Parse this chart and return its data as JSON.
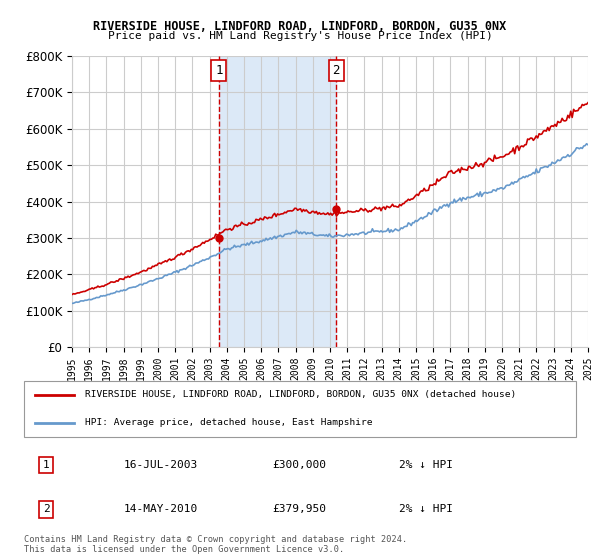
{
  "title1": "RIVERSIDE HOUSE, LINDFORD ROAD, LINDFORD, BORDON, GU35 0NX",
  "title2": "Price paid vs. HM Land Registry's House Price Index (HPI)",
  "legend_line1": "RIVERSIDE HOUSE, LINDFORD ROAD, LINDFORD, BORDON, GU35 0NX (detached house)",
  "legend_line2": "HPI: Average price, detached house, East Hampshire",
  "sale1_label": "1",
  "sale1_date": "16-JUL-2003",
  "sale1_price": "£300,000",
  "sale1_hpi": "2% ↓ HPI",
  "sale1_x": 2003.54,
  "sale1_y": 300000,
  "sale2_label": "2",
  "sale2_date": "14-MAY-2010",
  "sale2_price": "£379,950",
  "sale2_hpi": "2% ↓ HPI",
  "sale2_x": 2010.37,
  "sale2_y": 379950,
  "footnote": "Contains HM Land Registry data © Crown copyright and database right 2024.\nThis data is licensed under the Open Government Licence v3.0.",
  "xmin": 1995,
  "xmax": 2025,
  "ymin": 0,
  "ymax": 800000,
  "vline1_x": 2003.54,
  "vline2_x": 2010.37,
  "bg_shade_color": "#dce9f7",
  "vline_color": "#cc0000",
  "hpi_line_color": "#6699cc",
  "price_line_color": "#cc0000",
  "grid_color": "#cccccc",
  "yticks": [
    0,
    100000,
    200000,
    300000,
    400000,
    500000,
    600000,
    700000,
    800000
  ],
  "ytick_labels": [
    "£0",
    "£100K",
    "£200K",
    "£300K",
    "£400K",
    "£500K",
    "£600K",
    "£700K",
    "£800K"
  ]
}
